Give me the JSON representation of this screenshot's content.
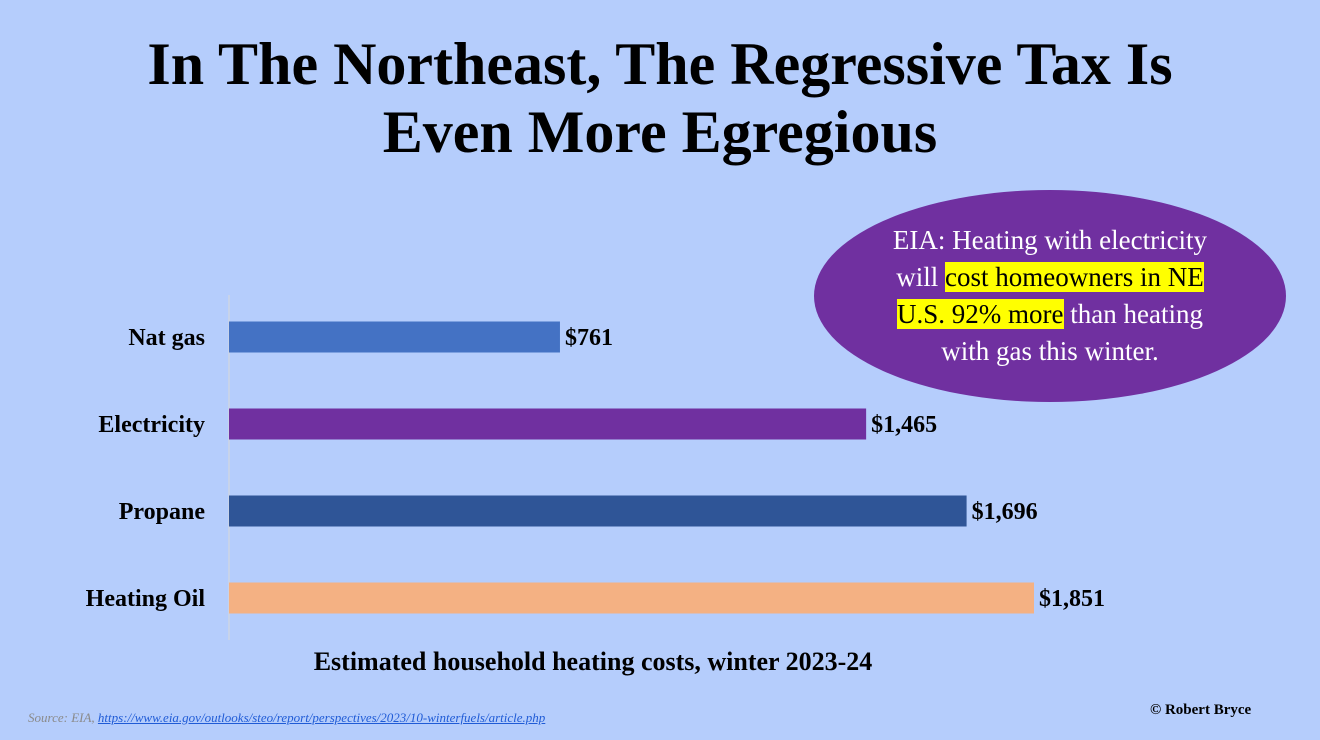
{
  "title_line1": "In The Northeast, The Regressive Tax Is",
  "title_line2": "Even More Egregious",
  "callout": {
    "part1": "EIA: Heating with electricity will ",
    "highlight1": "cost homeowners in NE U.S. 92% more",
    "part2": " than heating with gas this winter.",
    "highlight_color": "#ffff00",
    "fill_color": "#7030a0"
  },
  "chart_data": {
    "type": "bar",
    "orientation": "horizontal",
    "categories": [
      "Nat gas",
      "Electricity",
      "Propane",
      "Heating Oil"
    ],
    "values": [
      761,
      1465,
      1696,
      1851
    ],
    "data_labels": [
      "$761",
      "$1,465",
      "$1,696",
      "$1,851"
    ],
    "colors": [
      "#4472c4",
      "#7030a0",
      "#2f5597",
      "#f4b183"
    ],
    "xlabel": "Estimated household heating costs, winter 2023-24",
    "xlim": [
      0,
      1851
    ],
    "grid": false,
    "legend": "none"
  },
  "source": {
    "prefix": "Source: EIA, ",
    "link_text": "https://www.eia.gov/outlooks/steo/report/perspectives/2023/10-winterfuels/article.php"
  },
  "credit": "© Robert Bryce",
  "background": "#b5cdfc"
}
